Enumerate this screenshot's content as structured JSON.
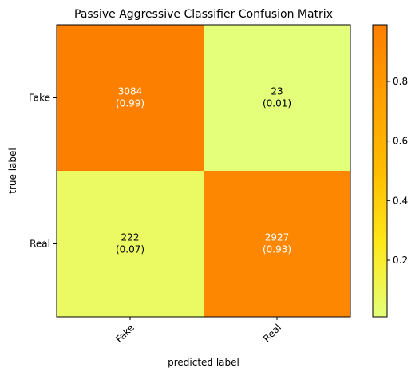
{
  "chart_data": {
    "type": "heatmap",
    "title": "Passive Aggressive Classifier Confusion Matrix",
    "xlabel": "predicted label",
    "ylabel": "true label",
    "x_categories": [
      "Fake",
      "Real"
    ],
    "y_categories": [
      "Fake",
      "Real"
    ],
    "counts": [
      [
        3084,
        23
      ],
      [
        222,
        2927
      ]
    ],
    "normalized": [
      [
        0.99,
        0.01
      ],
      [
        0.07,
        0.93
      ]
    ],
    "cell_labels": [
      [
        "3084\n(0.99)",
        "23\n(0.01)"
      ],
      [
        "222\n(0.07)",
        "2927\n(0.93)"
      ]
    ],
    "colormap": "Wistia",
    "colorbar": {
      "range": [
        0.01,
        0.99
      ],
      "ticks": [
        0.2,
        0.4,
        0.6,
        0.8
      ],
      "tick_labels": [
        "0.2",
        "0.4",
        "0.6",
        "0.8"
      ]
    },
    "x_tick_rotation_deg": 45
  }
}
